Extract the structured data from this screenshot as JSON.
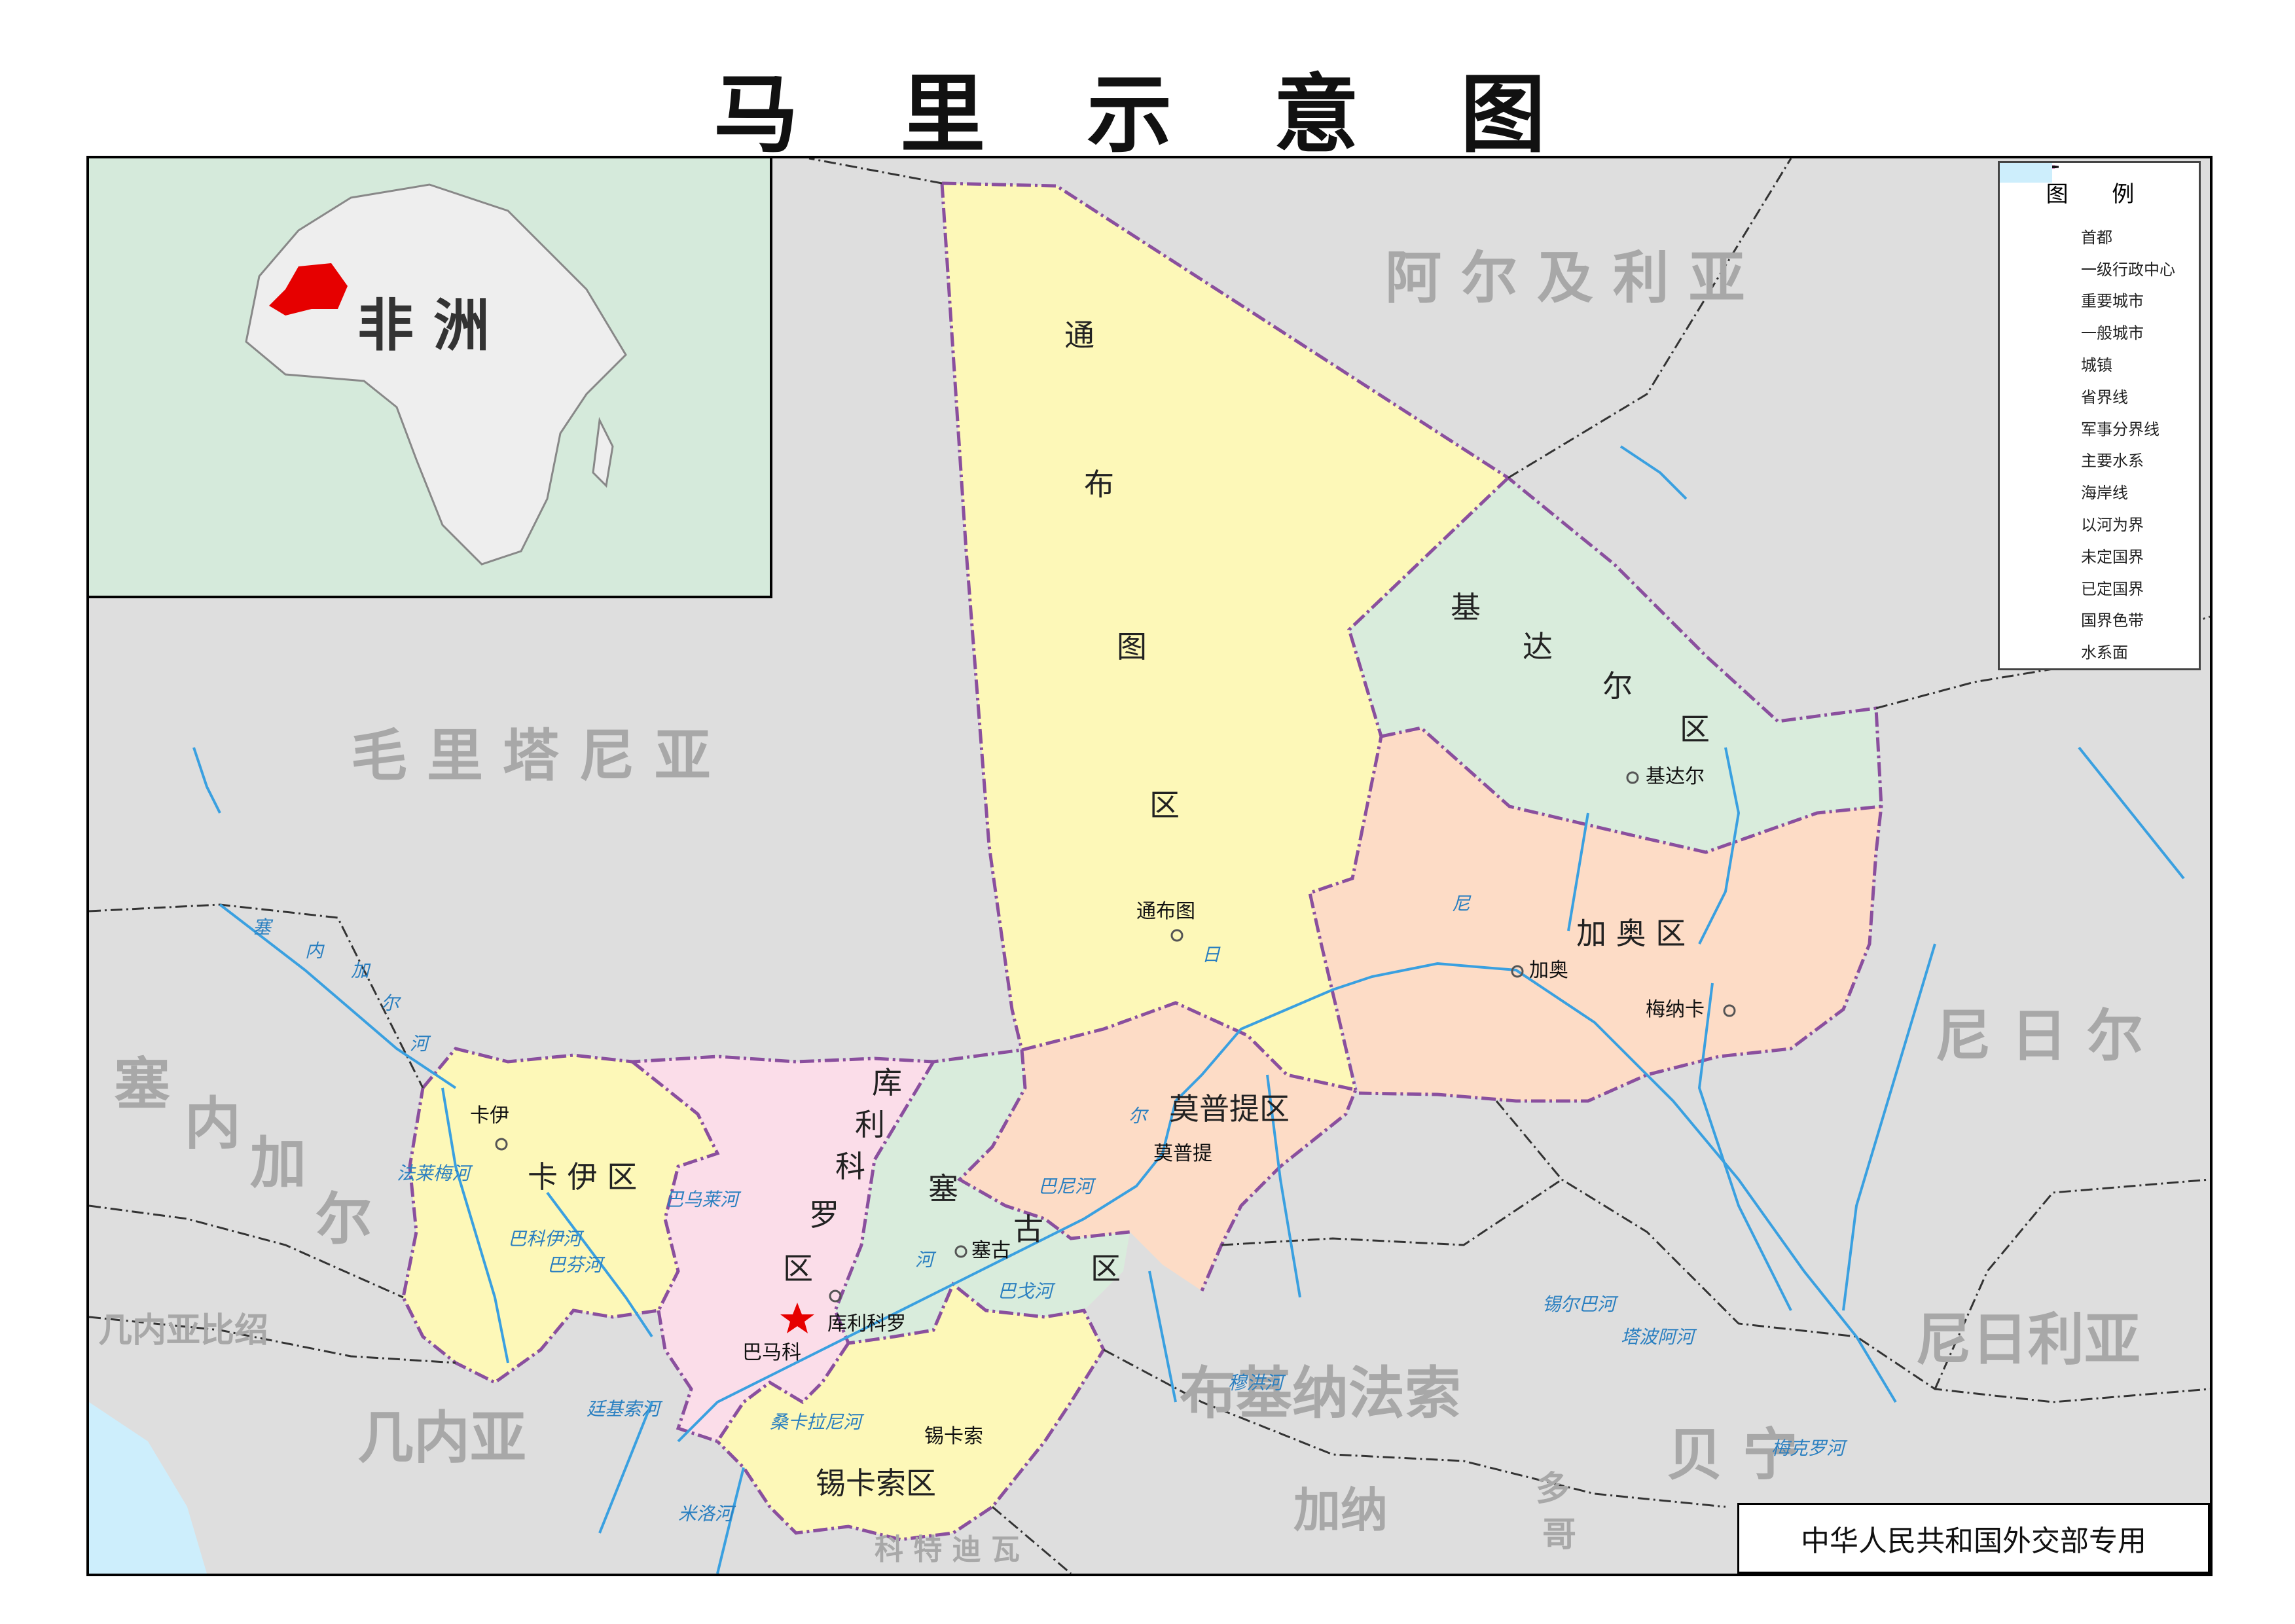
{
  "title": "马 里 示 意 图",
  "inset": {
    "label": "非 洲"
  },
  "countries": {
    "algeria": "阿 尔 及 利 亚",
    "mauritania": "毛 里 塔 尼 亚",
    "niger": "尼 日 尔",
    "senegal_1": "塞",
    "senegal_2": "内",
    "senegal_3": "加",
    "senegal_4": "尔",
    "guinea_bissau": "几内亚比绍",
    "guinea": "几内亚",
    "burkina_faso": "布基纳法索",
    "nigeria": "尼日利亚",
    "benin": "贝 宁",
    "ghana": "加纳",
    "togo_1": "多",
    "togo_2": "哥",
    "cote_divoire": "科 特 迪 瓦"
  },
  "regions": {
    "tombouctou": [
      "通",
      "布",
      "图",
      "区"
    ],
    "kidal": [
      "基",
      "达",
      "尔",
      "区"
    ],
    "gao": "加 奥 区",
    "mopti": "莫普提区",
    "kayes": "卡 伊 区",
    "koulikoro": [
      "库",
      "利",
      "科",
      "罗",
      "区"
    ],
    "segou": [
      "塞",
      "古",
      "区"
    ],
    "sikasso": "锡卡索区"
  },
  "cities": {
    "tombouctou": "通布图",
    "kidal": "基达尔",
    "gao": "加奥",
    "menaka": "梅纳卡",
    "mopti": "莫普提",
    "kayes": "卡伊",
    "segou": "塞古",
    "koulikoro": "库利科罗",
    "bamako": "巴马科",
    "sikasso": "锡卡索"
  },
  "rivers": {
    "niger_1": "尼",
    "niger_2": "日",
    "niger_3": "尔",
    "senegal_r": [
      "塞",
      "内",
      "加",
      "尔",
      "河"
    ],
    "bafing": "法莱梅河",
    "baoule": "巴乌莱河",
    "bani": "巴尼河",
    "bagoe": "巴戈河",
    "niger_seg": "河",
    "tinkisso": "廷基索河",
    "milo": "米洛河",
    "sankarani": "桑卡拉尼河",
    "sirba": "锡尔巴河",
    "tapoa": "塔波阿河",
    "mekrou": "梅克罗河",
    "volta": "穆洪河",
    "bakoye": "巴芬河",
    "bafing2": "巴科伊河"
  },
  "legend": {
    "title": "图 例",
    "items": [
      {
        "label": "首都",
        "symbol": "star-icon"
      },
      {
        "label": "一级行政中心",
        "symbol": "dot-icon"
      },
      {
        "label": "重要城市",
        "symbol": "dot-icon"
      },
      {
        "label": "一般城市",
        "symbol": "dot-icon"
      },
      {
        "label": "城镇",
        "symbol": "dot-icon"
      },
      {
        "label": "省界线",
        "symbol": "line-icon"
      },
      {
        "label": "军事分界线",
        "symbol": "line-icon"
      },
      {
        "label": "主要水系",
        "symbol": "line-icon"
      },
      {
        "label": "海岸线",
        "symbol": "line-icon"
      },
      {
        "label": "以河为界",
        "symbol": "line-icon"
      },
      {
        "label": "未定国界",
        "symbol": "line-icon"
      },
      {
        "label": "已定国界",
        "symbol": "line-icon"
      },
      {
        "label": "国界色带",
        "symbol": "swatch-icon"
      },
      {
        "label": "水系面",
        "symbol": "swatch-icon"
      }
    ]
  },
  "colors": {
    "tombouctou": "#fdf8b8",
    "kidal": "#d9ecdc",
    "gao": "#fddcc6",
    "mopti": "#fddcc6",
    "kayes": "#fdf8b8",
    "koulikoro": "#fbdde9",
    "segou": "#d9ecdc",
    "sikasso": "#fdf8b8",
    "neighbor": "#dedede",
    "water": "#3aa0e0",
    "border_province": "#8a4f9e",
    "mali_highlight": "#e60000"
  },
  "stamp": "中华人民共和国外交部专用"
}
